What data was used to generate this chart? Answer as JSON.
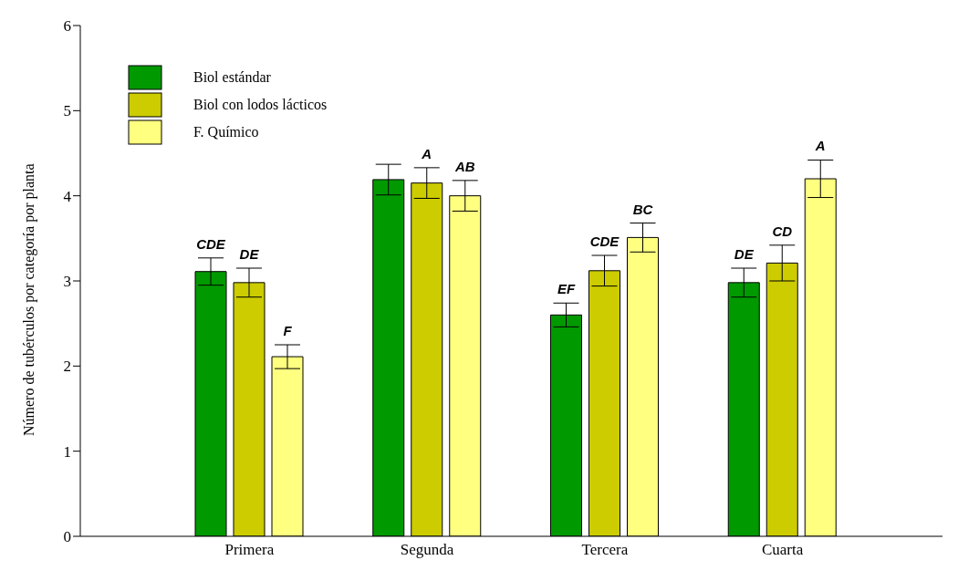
{
  "chart_data": {
    "type": "bar",
    "ylabel": "Número de tubérculos por categoría por planta",
    "categories": [
      "Primera",
      "Segunda",
      "Tercera",
      "Cuarta"
    ],
    "series": [
      {
        "name": "Biol estándar",
        "color": "#009900",
        "values": [
          3.11,
          4.19,
          2.6,
          2.98
        ],
        "errors": [
          0.16,
          0.18,
          0.14,
          0.17
        ],
        "value_labels": [
          "CDE",
          null,
          "EF",
          "DE"
        ]
      },
      {
        "name": "Biol con lodos lácticos",
        "color": "#cccc00",
        "values": [
          2.98,
          4.15,
          3.12,
          3.21
        ],
        "errors": [
          0.17,
          0.18,
          0.18,
          0.21
        ],
        "value_labels": [
          "DE",
          "A",
          "CDE",
          "CD"
        ]
      },
      {
        "name": "F. Químico",
        "color": "#ffff80",
        "values": [
          2.11,
          4.0,
          3.51,
          4.2
        ],
        "errors": [
          0.14,
          0.18,
          0.17,
          0.22
        ],
        "value_labels": [
          "F",
          "AB",
          "BC",
          "A"
        ]
      }
    ],
    "ylim": [
      0,
      6
    ],
    "yticks": [
      0,
      1,
      2,
      3,
      4,
      5,
      6
    ],
    "grid": false,
    "legend": "top left"
  }
}
